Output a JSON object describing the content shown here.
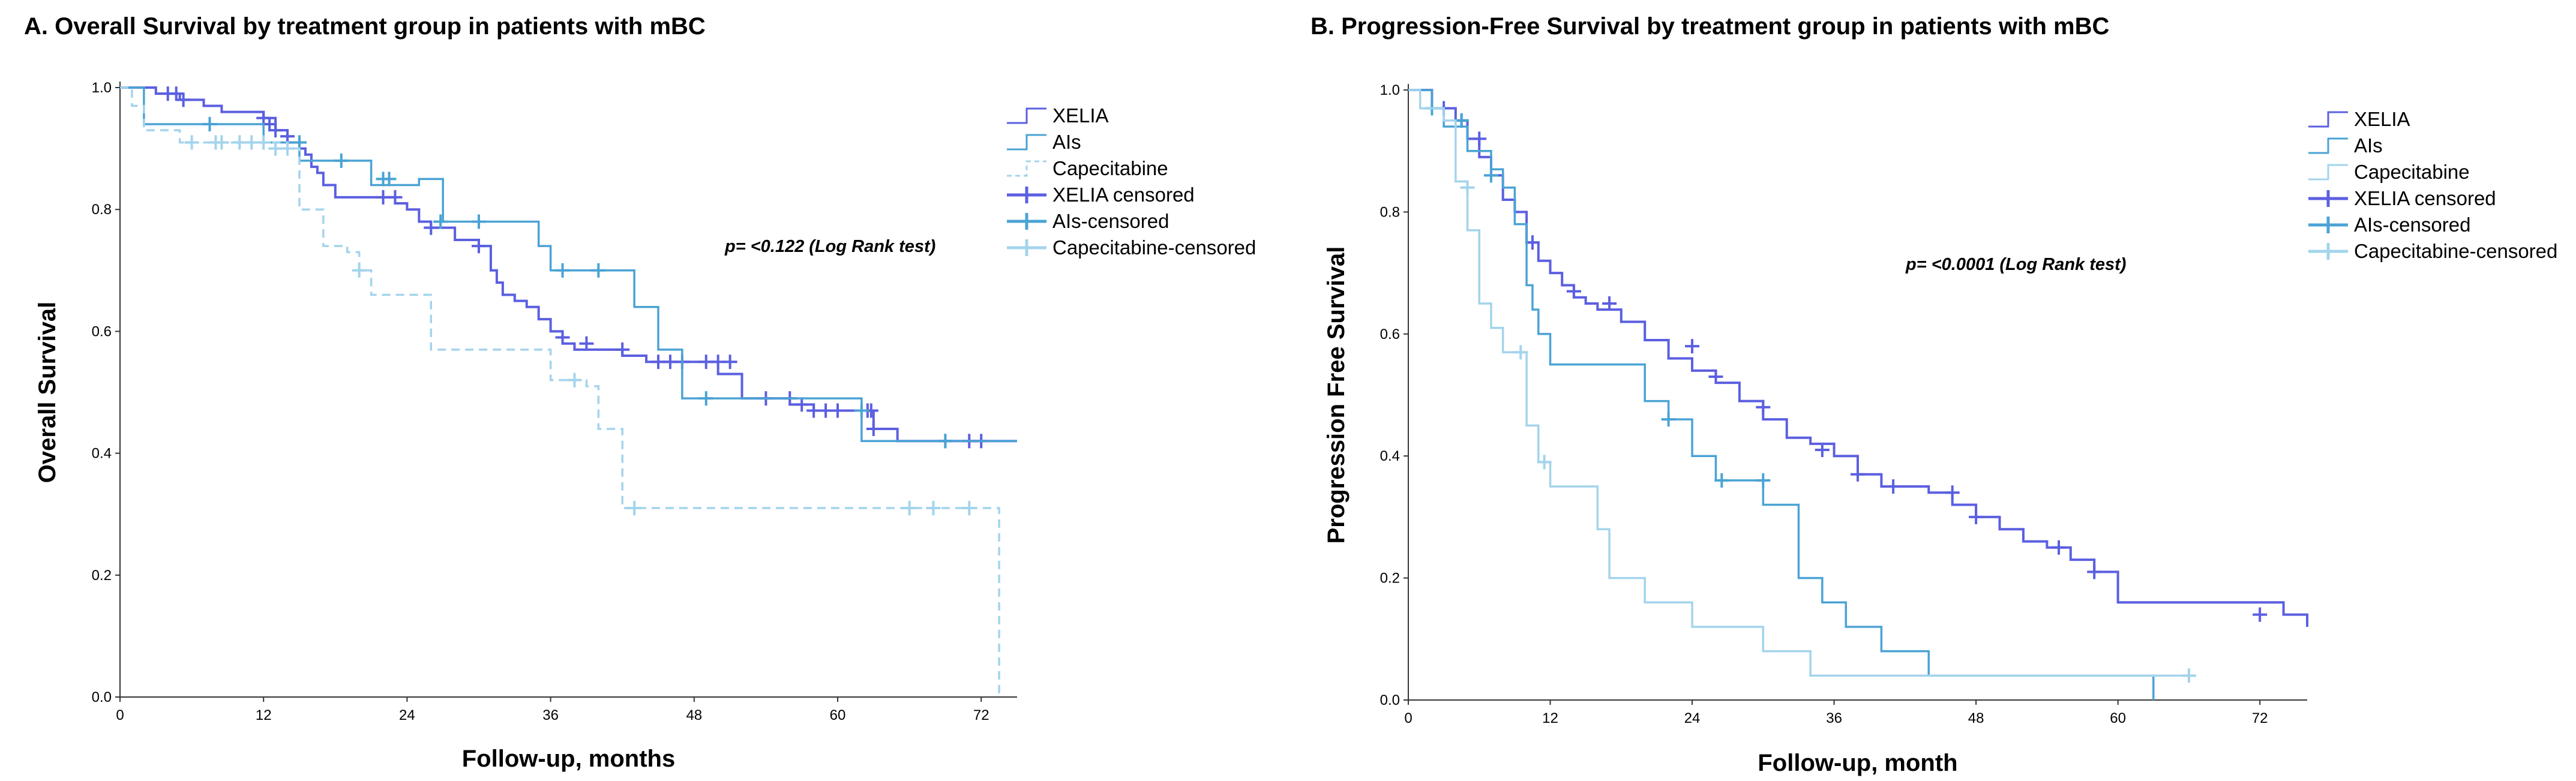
{
  "chart_data": [
    {
      "type": "line",
      "subtype": "kaplan-meier",
      "title": "A. Overall Survival by treatment group in patients with mBC",
      "xlabel": "Follow-up, months",
      "ylabel": "Overall Survival",
      "xlim": [
        0,
        75
      ],
      "ylim": [
        0,
        1
      ],
      "xticks": [
        0,
        12,
        24,
        36,
        48,
        60,
        72
      ],
      "yticks": [
        0.0,
        0.2,
        0.4,
        0.6,
        0.8,
        1.0
      ],
      "xtick_labels": [
        "0",
        "12",
        "24",
        "36",
        "48",
        "60",
        "72"
      ],
      "ytick_labels": [
        "0.0",
        "0.2",
        "0.4",
        "0.6",
        "0.8",
        "1.0"
      ],
      "annotation": "p= <0.122 (Log Rank test)",
      "grid": false,
      "legend_position": "top-right",
      "legend": [
        "XELIA",
        "AIs",
        "Capecitabine",
        "XELIA censored",
        "AIs-censored",
        "Capecitabine-censored"
      ],
      "series": [
        {
          "name": "XELIA",
          "color": "#5b5fe0",
          "dash": "solid",
          "x": [
            0,
            3,
            5,
            7,
            8.5,
            10,
            12,
            13,
            14,
            15,
            15.5,
            16,
            16.5,
            17,
            18,
            19,
            22,
            23,
            24,
            25,
            26,
            28,
            30,
            31,
            31.5,
            32,
            33,
            34,
            35,
            36,
            37,
            38,
            40,
            42,
            44,
            46,
            48,
            50,
            52,
            54,
            56,
            58,
            62,
            63,
            65,
            75
          ],
          "y": [
            1.0,
            0.99,
            0.98,
            0.97,
            0.96,
            0.96,
            0.95,
            0.93,
            0.91,
            0.9,
            0.89,
            0.87,
            0.86,
            0.84,
            0.82,
            0.82,
            0.82,
            0.81,
            0.8,
            0.78,
            0.77,
            0.75,
            0.74,
            0.7,
            0.68,
            0.66,
            0.65,
            0.64,
            0.62,
            0.6,
            0.58,
            0.57,
            0.57,
            0.56,
            0.55,
            0.55,
            0.55,
            0.53,
            0.49,
            0.49,
            0.48,
            0.47,
            0.47,
            0.44,
            0.42,
            0.42
          ],
          "censored_x": [
            4,
            4.7,
            5.3,
            12,
            12.5,
            13,
            14,
            22,
            23,
            26,
            30,
            37,
            39,
            42,
            45,
            46,
            47,
            49,
            50,
            51,
            54,
            56,
            57,
            58,
            59,
            60,
            62.5,
            62.8,
            63,
            69,
            71,
            72
          ],
          "censored_y": [
            0.99,
            0.99,
            0.98,
            0.95,
            0.94,
            0.93,
            0.92,
            0.82,
            0.82,
            0.77,
            0.74,
            0.59,
            0.58,
            0.57,
            0.55,
            0.55,
            0.55,
            0.55,
            0.55,
            0.55,
            0.49,
            0.49,
            0.48,
            0.47,
            0.47,
            0.47,
            0.47,
            0.47,
            0.44,
            0.42,
            0.42,
            0.42
          ]
        },
        {
          "name": "AIs",
          "color": "#4aa3d4",
          "dash": "solid",
          "x": [
            0,
            2,
            10,
            12,
            13,
            15,
            18,
            21,
            25,
            27,
            31,
            35,
            36,
            42,
            43,
            45,
            47,
            57,
            62,
            75
          ],
          "y": [
            1.0,
            0.94,
            0.94,
            0.91,
            0.91,
            0.88,
            0.88,
            0.84,
            0.85,
            0.78,
            0.78,
            0.74,
            0.7,
            0.7,
            0.64,
            0.57,
            0.49,
            0.49,
            0.42,
            0.42
          ],
          "censored_x": [
            7.5,
            15,
            18.5,
            22,
            22.5,
            26.8,
            30,
            37,
            40,
            49,
            62,
            69
          ],
          "censored_y": [
            0.94,
            0.91,
            0.88,
            0.85,
            0.85,
            0.78,
            0.78,
            0.7,
            0.7,
            0.49,
            0.47,
            0.42
          ]
        },
        {
          "name": "Capecitabine",
          "color": "#a3d4ec",
          "dash": "dashed",
          "x": [
            0,
            1,
            2,
            5,
            9,
            14,
            15,
            17,
            19,
            20,
            21,
            26,
            36,
            39,
            40,
            42,
            73,
            73.5
          ],
          "y": [
            1.0,
            0.97,
            0.93,
            0.91,
            0.91,
            0.9,
            0.8,
            0.74,
            0.73,
            0.7,
            0.66,
            0.57,
            0.52,
            0.51,
            0.44,
            0.31,
            0.31,
            0.0
          ],
          "censored_x": [
            6,
            8,
            8.5,
            10,
            11,
            12,
            13,
            14,
            20,
            38,
            43,
            66,
            68,
            71
          ],
          "censored_y": [
            0.91,
            0.91,
            0.91,
            0.91,
            0.91,
            0.91,
            0.9,
            0.9,
            0.7,
            0.52,
            0.31,
            0.31,
            0.31,
            0.31
          ]
        }
      ]
    },
    {
      "type": "line",
      "subtype": "kaplan-meier",
      "title": "B. Progression-Free Survival by treatment group in patients with mBC",
      "xlabel": "Follow-up, month",
      "ylabel": "Progression Free Survival",
      "xlim": [
        0,
        76
      ],
      "ylim": [
        0,
        1
      ],
      "xticks": [
        0,
        12,
        24,
        36,
        48,
        60,
        72
      ],
      "yticks": [
        0.0,
        0.2,
        0.4,
        0.6,
        0.8,
        1.0
      ],
      "xtick_labels": [
        "0",
        "12",
        "24",
        "36",
        "48",
        "60",
        "72"
      ],
      "ytick_labels": [
        "0.0",
        "0.2",
        "0.4",
        "0.6",
        "0.8",
        "1.0"
      ],
      "annotation": "p= <0.0001 (Log Rank test)",
      "grid": false,
      "legend_position": "top-right",
      "legend": [
        "XELIA",
        "AIs",
        "Capecitabine",
        "XELIA censored",
        "AIs-censored",
        "Capecitabine-censored"
      ],
      "series": [
        {
          "name": "XELIA",
          "color": "#5b5fe0",
          "dash": "solid",
          "x": [
            0,
            2,
            4,
            5,
            6,
            7,
            8,
            9,
            10,
            11,
            12,
            13,
            14,
            15,
            16,
            18,
            20,
            22,
            24,
            26,
            28,
            30,
            32,
            34,
            36,
            38,
            40,
            42,
            44,
            46,
            48,
            50,
            52,
            54,
            56,
            58,
            60,
            62,
            64,
            70,
            74,
            76
          ],
          "y": [
            1.0,
            0.97,
            0.95,
            0.92,
            0.89,
            0.86,
            0.82,
            0.8,
            0.75,
            0.72,
            0.7,
            0.68,
            0.66,
            0.65,
            0.64,
            0.62,
            0.59,
            0.56,
            0.54,
            0.52,
            0.49,
            0.46,
            0.43,
            0.42,
            0.4,
            0.37,
            0.35,
            0.35,
            0.34,
            0.32,
            0.3,
            0.28,
            0.26,
            0.25,
            0.23,
            0.21,
            0.16,
            0.16,
            0.16,
            0.16,
            0.14,
            0.12
          ],
          "censored_x": [
            3,
            4.5,
            6,
            10.5,
            14,
            17,
            24,
            26,
            30,
            35,
            38,
            41,
            46,
            48,
            55,
            58,
            72
          ],
          "censored_y": [
            0.97,
            0.95,
            0.92,
            0.75,
            0.67,
            0.65,
            0.58,
            0.53,
            0.48,
            0.41,
            0.37,
            0.35,
            0.34,
            0.3,
            0.25,
            0.21,
            0.14
          ]
        },
        {
          "name": "AIs",
          "color": "#4aa3d4",
          "dash": "solid",
          "x": [
            0,
            2,
            3,
            5,
            7,
            8,
            9,
            10,
            10.5,
            11,
            12,
            14,
            16,
            18,
            20,
            22,
            24,
            26,
            28,
            30,
            33,
            35,
            37,
            40,
            44,
            48,
            63
          ],
          "y": [
            1.0,
            0.97,
            0.94,
            0.9,
            0.87,
            0.84,
            0.78,
            0.68,
            0.64,
            0.6,
            0.55,
            0.55,
            0.55,
            0.55,
            0.49,
            0.46,
            0.4,
            0.36,
            0.36,
            0.32,
            0.2,
            0.16,
            0.12,
            0.08,
            0.04,
            0.04,
            0.0
          ],
          "censored_x": [
            2,
            4.5,
            7,
            22,
            26.5,
            30
          ],
          "censored_y": [
            0.97,
            0.95,
            0.86,
            0.46,
            0.36,
            0.36
          ]
        },
        {
          "name": "Capecitabine",
          "color": "#a3d4ec",
          "dash": "solid",
          "x": [
            0,
            1,
            2,
            3,
            4,
            5,
            6,
            7,
            8,
            9,
            10,
            11,
            12,
            14,
            16,
            17,
            20,
            24,
            30,
            34,
            40,
            48,
            63,
            66
          ],
          "y": [
            1.0,
            0.97,
            0.97,
            0.95,
            0.85,
            0.77,
            0.65,
            0.61,
            0.57,
            0.57,
            0.45,
            0.39,
            0.35,
            0.35,
            0.28,
            0.2,
            0.16,
            0.12,
            0.08,
            0.04,
            0.04,
            0.04,
            0.04,
            0.04
          ],
          "censored_x": [
            5,
            9.5,
            11.5,
            66
          ],
          "censored_y": [
            0.84,
            0.57,
            0.39,
            0.04
          ]
        }
      ]
    }
  ]
}
